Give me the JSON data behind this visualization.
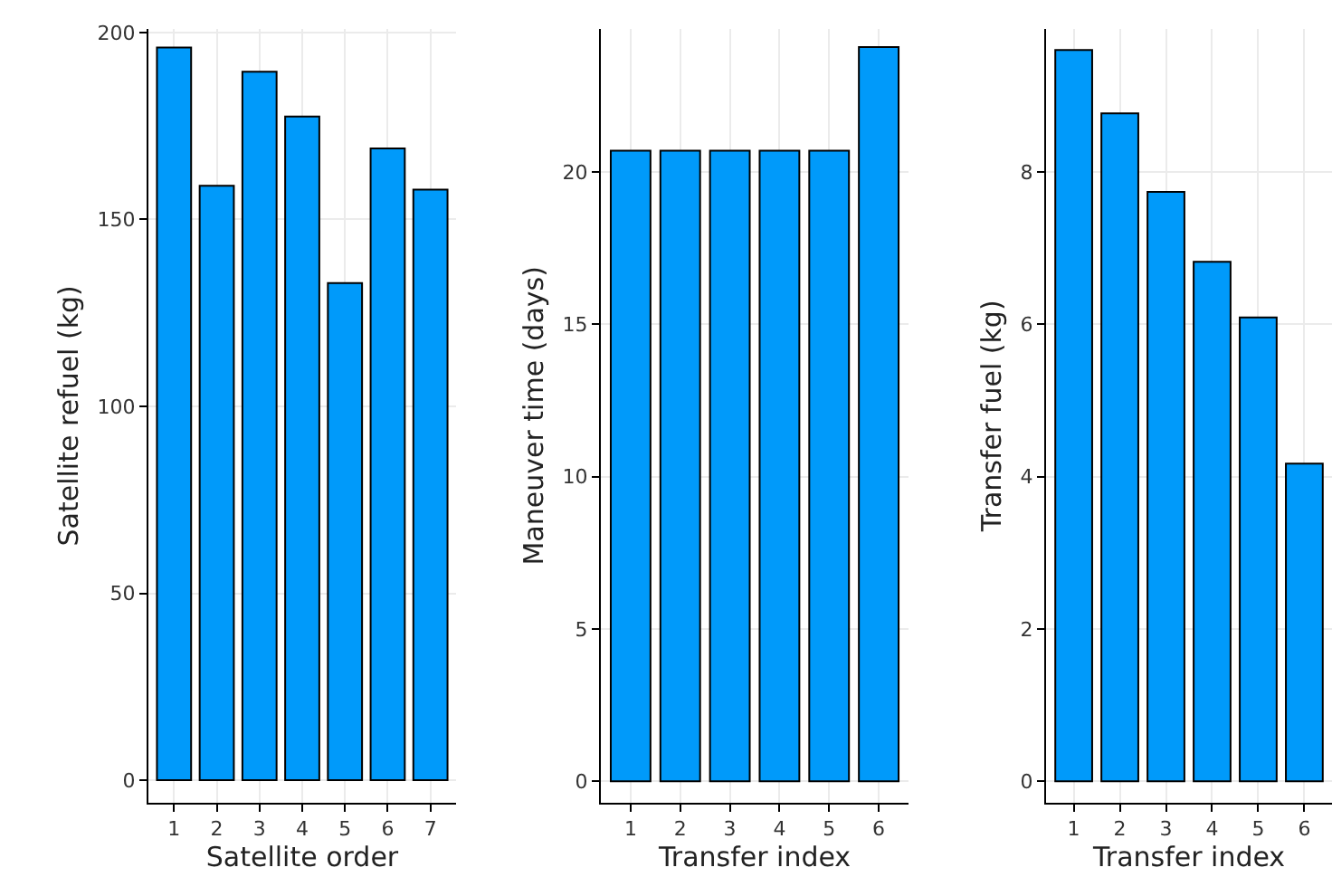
{
  "chart_data": [
    {
      "type": "bar",
      "xlabel": "Satellite order",
      "ylabel": "Satellite refuel (kg)",
      "categories": [
        "1",
        "2",
        "3",
        "4",
        "5",
        "6",
        "7"
      ],
      "values": [
        196,
        159,
        189.5,
        177.5,
        133,
        169,
        158
      ],
      "color": "#009afa",
      "ylim": [
        -6,
        201
      ],
      "yticks": [
        0,
        50,
        100,
        150,
        200
      ],
      "grid": true,
      "legend": false
    },
    {
      "type": "bar",
      "xlabel": "Transfer index",
      "ylabel": "Maneuver time (days)",
      "categories": [
        "1",
        "2",
        "3",
        "4",
        "5",
        "6"
      ],
      "values": [
        20.7,
        20.7,
        20.7,
        20.7,
        20.7,
        24.1
      ],
      "color": "#009afa",
      "ylim": [
        -0.7,
        24.7
      ],
      "yticks": [
        0,
        5,
        10,
        15,
        20
      ],
      "grid": true,
      "legend": false
    },
    {
      "type": "bar",
      "xlabel": "Transfer index",
      "ylabel": "Transfer fuel (kg)",
      "categories": [
        "1",
        "2",
        "3",
        "4",
        "5",
        "6"
      ],
      "values": [
        9.6,
        8.77,
        7.74,
        6.82,
        6.09,
        4.17
      ],
      "color": "#009afa",
      "ylim": [
        -0.28,
        9.88
      ],
      "yticks": [
        0,
        2,
        4,
        6,
        8
      ],
      "grid": true,
      "legend": false
    }
  ]
}
